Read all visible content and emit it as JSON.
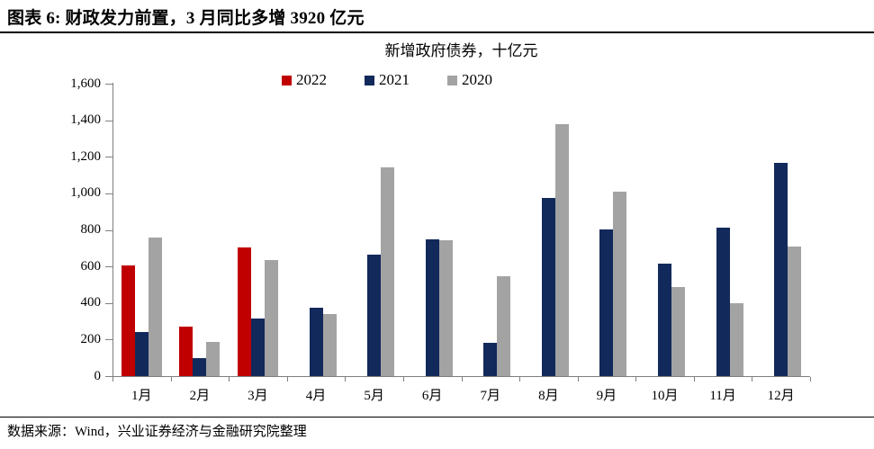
{
  "figure": {
    "title": "图表 6: 财政发力前置，3 月同比多增 3920 亿元",
    "source": "数据来源：Wind，兴业证券经济与金融研究院整理"
  },
  "chart_data": {
    "type": "bar",
    "title": "新增政府债券，十亿元",
    "categories": [
      "1月",
      "2月",
      "3月",
      "4月",
      "5月",
      "6月",
      "7月",
      "8月",
      "9月",
      "10月",
      "11月",
      "12月"
    ],
    "series": [
      {
        "name": "2022",
        "color": "#c00000",
        "values": [
          605,
          270,
          705,
          null,
          null,
          null,
          null,
          null,
          null,
          null,
          null,
          null
        ]
      },
      {
        "name": "2021",
        "color": "#12295b",
        "values": [
          240,
          100,
          313,
          375,
          665,
          750,
          180,
          975,
          805,
          615,
          815,
          1165
        ]
      },
      {
        "name": "2020",
        "color": "#a3a3a3",
        "values": [
          760,
          185,
          635,
          340,
          1140,
          745,
          545,
          1380,
          1010,
          490,
          400,
          710
        ]
      }
    ],
    "xlabel": "",
    "ylabel": "",
    "ylim": [
      0,
      1600
    ],
    "ytick_step": 200,
    "yticks": [
      "0",
      "200",
      "400",
      "600",
      "800",
      "1,000",
      "1,200",
      "1,400",
      "1,600"
    ],
    "legend_position": "top-center",
    "grid": false,
    "axis_color": "#7f7f7f"
  }
}
